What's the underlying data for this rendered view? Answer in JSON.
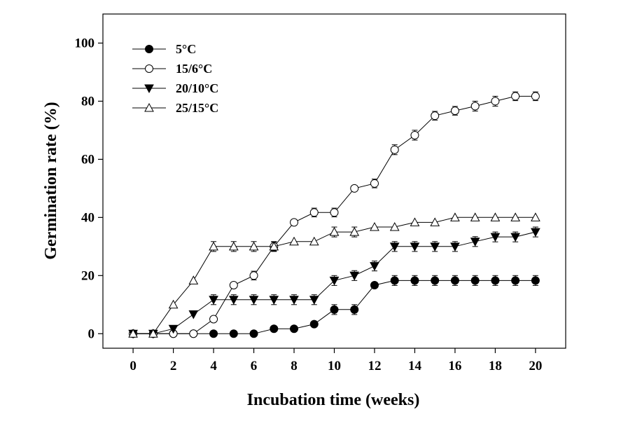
{
  "chart_data": {
    "type": "line",
    "title": "",
    "xlabel": "Incubation time (weeks)",
    "ylabel": "Germination rate (%)",
    "xlim": [
      -1.5,
      21.5
    ],
    "ylim": [
      -5,
      110
    ],
    "xticks": [
      0,
      2,
      4,
      6,
      8,
      10,
      12,
      14,
      16,
      18,
      20
    ],
    "yticks": [
      0,
      20,
      40,
      60,
      80,
      100
    ],
    "grid": false,
    "legend_position": "top-left",
    "series": [
      {
        "name": "5°C",
        "marker": "filled-circle",
        "x": [
          0,
          1,
          2,
          3,
          4,
          5,
          6,
          7,
          8,
          9,
          10,
          11,
          12,
          13,
          14,
          15,
          16,
          17,
          18,
          19,
          20
        ],
        "y": [
          0,
          0,
          0,
          0,
          0,
          0,
          0,
          1.7,
          1.7,
          3.3,
          8.3,
          8.3,
          16.7,
          18.3,
          18.3,
          18.3,
          18.3,
          18.3,
          18.3,
          18.3,
          18.3
        ],
        "err": [
          0,
          0,
          0,
          0,
          0,
          0,
          0,
          0,
          0,
          0,
          1.7,
          1.7,
          0,
          1.7,
          1.7,
          1.7,
          1.7,
          1.7,
          1.7,
          1.7,
          1.7
        ]
      },
      {
        "name": "15/6°C",
        "marker": "open-circle",
        "x": [
          0,
          1,
          2,
          3,
          4,
          5,
          6,
          7,
          8,
          9,
          10,
          11,
          12,
          13,
          14,
          15,
          16,
          17,
          18,
          19,
          20
        ],
        "y": [
          0,
          0,
          0,
          0,
          5,
          16.7,
          20,
          30,
          38.3,
          41.7,
          41.7,
          50,
          51.7,
          63.3,
          68.3,
          75,
          76.7,
          78.3,
          80,
          81.7,
          81.7
        ],
        "err": [
          0,
          0,
          0,
          0,
          0,
          0,
          1.5,
          1.5,
          0,
          1.5,
          1.5,
          0,
          1.5,
          1.7,
          1.7,
          1.5,
          1.5,
          1.7,
          1.7,
          1.5,
          1.5
        ]
      },
      {
        "name": "20/10°C",
        "marker": "filled-triangle-down",
        "x": [
          0,
          1,
          2,
          3,
          4,
          5,
          6,
          7,
          8,
          9,
          10,
          11,
          12,
          13,
          14,
          15,
          16,
          17,
          18,
          19,
          20
        ],
        "y": [
          0,
          0,
          1.7,
          6.7,
          11.7,
          11.7,
          11.7,
          11.7,
          11.7,
          11.7,
          18.3,
          20,
          23.3,
          30,
          30,
          30,
          30,
          31.7,
          33.3,
          33.3,
          35
        ],
        "err": [
          0,
          0,
          0,
          0,
          1.7,
          1.7,
          1.7,
          1.7,
          1.7,
          1.7,
          1.7,
          1.7,
          1.7,
          1.7,
          1.7,
          1.7,
          1.7,
          1.7,
          1.7,
          1.7,
          1.7
        ]
      },
      {
        "name": "25/15°C",
        "marker": "open-triangle-up",
        "x": [
          0,
          1,
          2,
          3,
          4,
          5,
          6,
          7,
          8,
          9,
          10,
          11,
          12,
          13,
          14,
          15,
          16,
          17,
          18,
          19,
          20
        ],
        "y": [
          0,
          0,
          10,
          18.3,
          30,
          30,
          30,
          30,
          31.7,
          31.7,
          35,
          35,
          36.7,
          36.7,
          38.3,
          38.3,
          40,
          40,
          40,
          40,
          40
        ],
        "err": [
          0,
          0,
          0,
          0,
          1.7,
          1.7,
          1.7,
          1.7,
          0,
          0,
          1.7,
          1.7,
          0,
          0,
          0,
          0,
          0,
          0,
          0,
          0,
          0
        ]
      }
    ]
  }
}
